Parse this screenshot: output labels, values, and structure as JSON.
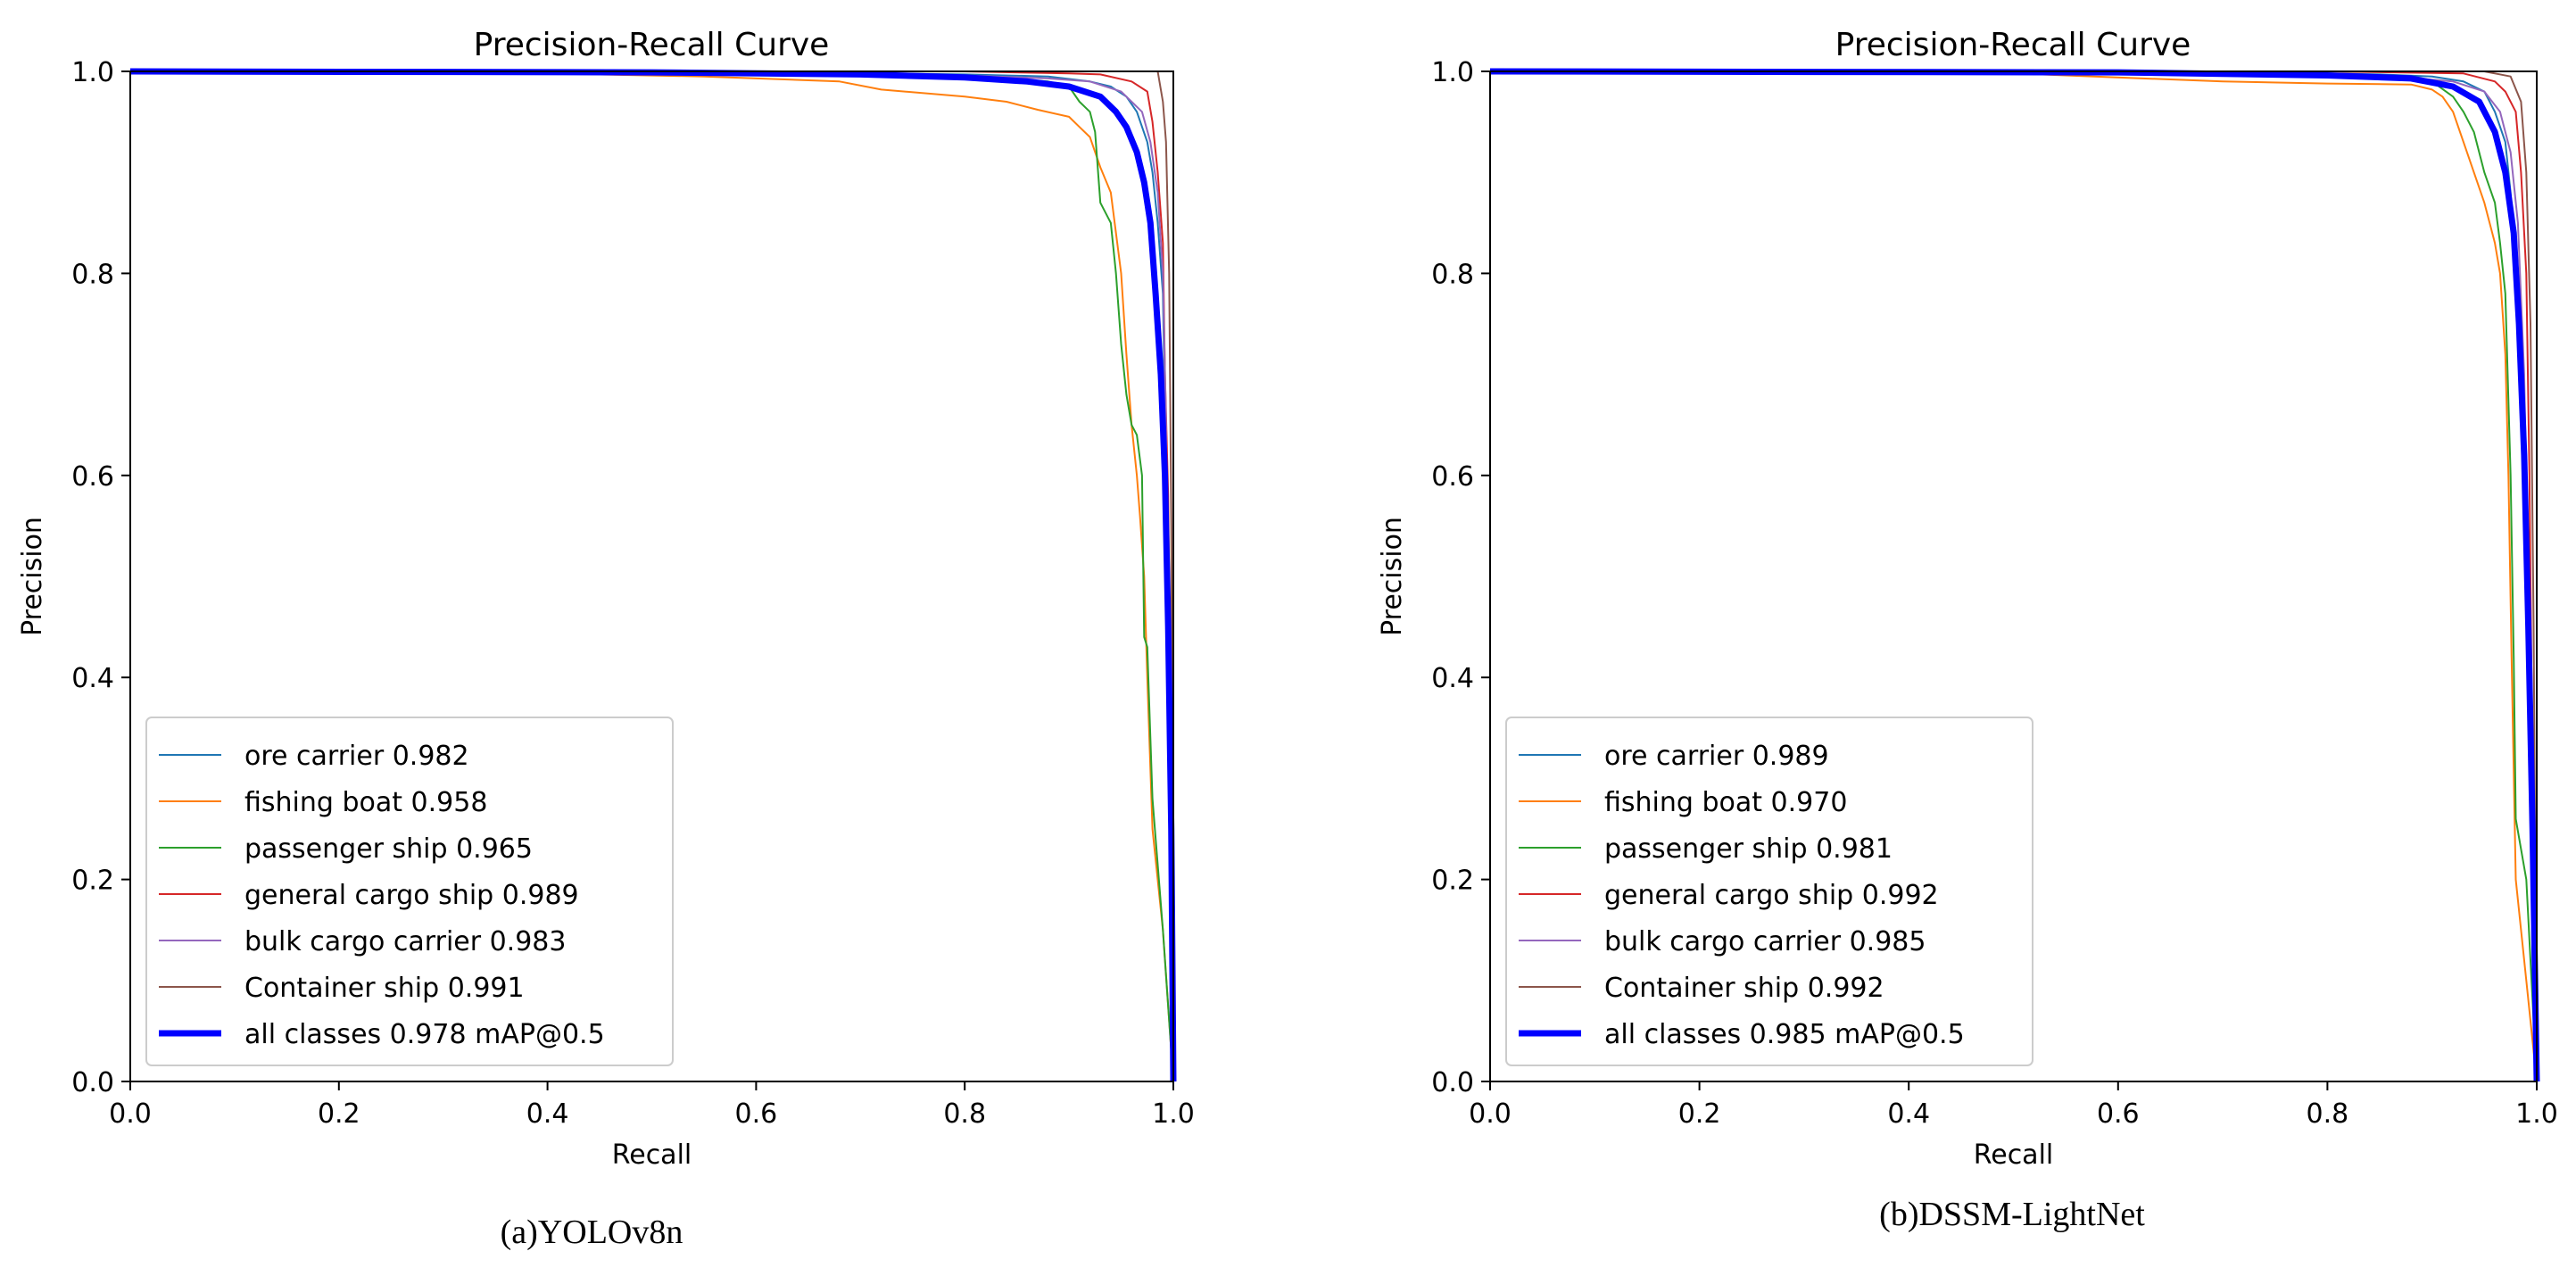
{
  "chart_data": [
    {
      "type": "line",
      "title": "Precision-Recall Curve",
      "xlabel": "Recall",
      "ylabel": "Precision",
      "xlim": [
        0,
        1
      ],
      "ylim": [
        0,
        1
      ],
      "xticks": [
        "0.0",
        "0.2",
        "0.4",
        "0.6",
        "0.8",
        "1.0"
      ],
      "yticks": [
        "0.0",
        "0.2",
        "0.4",
        "0.6",
        "0.8",
        "1.0"
      ],
      "caption": "(a)YOLOv8n",
      "legend_position": "lower-left",
      "series": [
        {
          "name": "ore carrier 0.982",
          "color": "#1f77b4",
          "width": 2,
          "points": [
            [
              0,
              1
            ],
            [
              0.55,
              1
            ],
            [
              0.8,
              0.997
            ],
            [
              0.88,
              0.995
            ],
            [
              0.92,
              0.99
            ],
            [
              0.94,
              0.985
            ],
            [
              0.955,
              0.975
            ],
            [
              0.965,
              0.96
            ],
            [
              0.975,
              0.93
            ],
            [
              0.98,
              0.9
            ],
            [
              0.985,
              0.85
            ],
            [
              0.99,
              0.78
            ],
            [
              0.993,
              0.6
            ],
            [
              0.996,
              0.3
            ],
            [
              1,
              0
            ]
          ]
        },
        {
          "name": "fishing boat 0.958",
          "color": "#ff7f0e",
          "width": 2,
          "points": [
            [
              0,
              1
            ],
            [
              0.3,
              1
            ],
            [
              0.55,
              0.995
            ],
            [
              0.68,
              0.99
            ],
            [
              0.72,
              0.982
            ],
            [
              0.8,
              0.975
            ],
            [
              0.84,
              0.97
            ],
            [
              0.87,
              0.962
            ],
            [
              0.9,
              0.955
            ],
            [
              0.91,
              0.945
            ],
            [
              0.92,
              0.935
            ],
            [
              0.93,
              0.905
            ],
            [
              0.94,
              0.88
            ],
            [
              0.95,
              0.8
            ],
            [
              0.955,
              0.72
            ],
            [
              0.96,
              0.65
            ],
            [
              0.965,
              0.6
            ],
            [
              0.968,
              0.56
            ],
            [
              0.972,
              0.5
            ],
            [
              0.975,
              0.4
            ],
            [
              0.98,
              0.25
            ],
            [
              0.99,
              0.15
            ],
            [
              1,
              0
            ]
          ]
        },
        {
          "name": "passenger ship 0.965",
          "color": "#2ca02c",
          "width": 2,
          "points": [
            [
              0,
              1
            ],
            [
              0.6,
              1
            ],
            [
              0.8,
              0.995
            ],
            [
              0.88,
              0.99
            ],
            [
              0.9,
              0.985
            ],
            [
              0.91,
              0.97
            ],
            [
              0.92,
              0.96
            ],
            [
              0.925,
              0.94
            ],
            [
              0.93,
              0.87
            ],
            [
              0.94,
              0.85
            ],
            [
              0.945,
              0.8
            ],
            [
              0.95,
              0.73
            ],
            [
              0.955,
              0.68
            ],
            [
              0.96,
              0.65
            ],
            [
              0.965,
              0.64
            ],
            [
              0.97,
              0.6
            ],
            [
              0.972,
              0.44
            ],
            [
              0.975,
              0.43
            ],
            [
              0.98,
              0.28
            ],
            [
              0.99,
              0.15
            ],
            [
              1,
              0
            ]
          ]
        },
        {
          "name": "general cargo ship 0.989",
          "color": "#d62728",
          "width": 2,
          "points": [
            [
              0,
              1
            ],
            [
              0.8,
              1
            ],
            [
              0.9,
              0.998
            ],
            [
              0.93,
              0.997
            ],
            [
              0.96,
              0.99
            ],
            [
              0.975,
              0.98
            ],
            [
              0.98,
              0.95
            ],
            [
              0.985,
              0.9
            ],
            [
              0.99,
              0.83
            ],
            [
              0.992,
              0.7
            ],
            [
              0.995,
              0.58
            ],
            [
              0.998,
              0.3
            ],
            [
              1,
              0
            ]
          ]
        },
        {
          "name": "bulk cargo carrier 0.983",
          "color": "#9467bd",
          "width": 2,
          "points": [
            [
              0,
              1
            ],
            [
              0.6,
              1
            ],
            [
              0.8,
              0.996
            ],
            [
              0.88,
              0.993
            ],
            [
              0.92,
              0.99
            ],
            [
              0.95,
              0.98
            ],
            [
              0.97,
              0.96
            ],
            [
              0.978,
              0.93
            ],
            [
              0.985,
              0.88
            ],
            [
              0.99,
              0.8
            ],
            [
              0.993,
              0.65
            ],
            [
              0.996,
              0.3
            ],
            [
              1,
              0
            ]
          ]
        },
        {
          "name": "Container ship 0.991",
          "color": "#8c564b",
          "width": 2,
          "points": [
            [
              0,
              1
            ],
            [
              0.85,
              1
            ],
            [
              0.96,
              1
            ],
            [
              0.985,
              1
            ],
            [
              0.99,
              0.97
            ],
            [
              0.993,
              0.93
            ],
            [
              0.996,
              0.8
            ],
            [
              0.998,
              0.55
            ],
            [
              1,
              0
            ]
          ]
        },
        {
          "name": "all classes 0.978 mAP@0.5",
          "color": "#0000ff",
          "width": 7,
          "points": [
            [
              0,
              1
            ],
            [
              0.5,
              0.999
            ],
            [
              0.7,
              0.997
            ],
            [
              0.8,
              0.994
            ],
            [
              0.86,
              0.99
            ],
            [
              0.9,
              0.985
            ],
            [
              0.93,
              0.975
            ],
            [
              0.945,
              0.96
            ],
            [
              0.955,
              0.945
            ],
            [
              0.965,
              0.92
            ],
            [
              0.972,
              0.89
            ],
            [
              0.978,
              0.85
            ],
            [
              0.983,
              0.78
            ],
            [
              0.988,
              0.7
            ],
            [
              0.992,
              0.6
            ],
            [
              0.995,
              0.45
            ],
            [
              0.998,
              0.25
            ],
            [
              1,
              0
            ]
          ]
        }
      ]
    },
    {
      "type": "line",
      "title": "Precision-Recall Curve",
      "xlabel": "Recall",
      "ylabel": "Precision",
      "xlim": [
        0,
        1
      ],
      "ylim": [
        0,
        1
      ],
      "xticks": [
        "0.0",
        "0.2",
        "0.4",
        "0.6",
        "0.8",
        "1.0"
      ],
      "yticks": [
        "0.0",
        "0.2",
        "0.4",
        "0.6",
        "0.8",
        "1.0"
      ],
      "caption": "(b)DSSM-LightNet",
      "legend_position": "lower-left",
      "series": [
        {
          "name": "ore carrier 0.989",
          "color": "#1f77b4",
          "width": 2,
          "points": [
            [
              0,
              1
            ],
            [
              0.7,
              1
            ],
            [
              0.85,
              0.997
            ],
            [
              0.9,
              0.995
            ],
            [
              0.93,
              0.99
            ],
            [
              0.95,
              0.98
            ],
            [
              0.96,
              0.96
            ],
            [
              0.97,
              0.93
            ],
            [
              0.975,
              0.88
            ],
            [
              0.98,
              0.8
            ],
            [
              0.985,
              0.7
            ],
            [
              0.99,
              0.5
            ],
            [
              0.995,
              0.2
            ],
            [
              1,
              0
            ]
          ]
        },
        {
          "name": "fishing boat 0.970",
          "color": "#ff7f0e",
          "width": 2,
          "points": [
            [
              0,
              1
            ],
            [
              0.5,
              0.998
            ],
            [
              0.7,
              0.99
            ],
            [
              0.8,
              0.988
            ],
            [
              0.88,
              0.987
            ],
            [
              0.9,
              0.982
            ],
            [
              0.91,
              0.975
            ],
            [
              0.92,
              0.96
            ],
            [
              0.93,
              0.93
            ],
            [
              0.94,
              0.9
            ],
            [
              0.95,
              0.87
            ],
            [
              0.96,
              0.83
            ],
            [
              0.965,
              0.8
            ],
            [
              0.97,
              0.72
            ],
            [
              0.973,
              0.6
            ],
            [
              0.976,
              0.42
            ],
            [
              0.98,
              0.2
            ],
            [
              0.99,
              0.1
            ],
            [
              1,
              0
            ]
          ]
        },
        {
          "name": "passenger ship 0.981",
          "color": "#2ca02c",
          "width": 2,
          "points": [
            [
              0,
              1
            ],
            [
              0.7,
              1
            ],
            [
              0.85,
              0.995
            ],
            [
              0.9,
              0.99
            ],
            [
              0.92,
              0.975
            ],
            [
              0.93,
              0.96
            ],
            [
              0.94,
              0.94
            ],
            [
              0.95,
              0.9
            ],
            [
              0.96,
              0.87
            ],
            [
              0.965,
              0.83
            ],
            [
              0.97,
              0.78
            ],
            [
              0.975,
              0.6
            ],
            [
              0.978,
              0.42
            ],
            [
              0.98,
              0.26
            ],
            [
              0.99,
              0.2
            ],
            [
              1,
              0
            ]
          ]
        },
        {
          "name": "general cargo ship 0.992",
          "color": "#d62728",
          "width": 2,
          "points": [
            [
              0,
              1
            ],
            [
              0.8,
              1
            ],
            [
              0.93,
              0.998
            ],
            [
              0.96,
              0.99
            ],
            [
              0.97,
              0.98
            ],
            [
              0.98,
              0.96
            ],
            [
              0.985,
              0.9
            ],
            [
              0.99,
              0.8
            ],
            [
              0.993,
              0.6
            ],
            [
              0.996,
              0.3
            ],
            [
              1,
              0
            ]
          ]
        },
        {
          "name": "bulk cargo carrier 0.985",
          "color": "#9467bd",
          "width": 2,
          "points": [
            [
              0,
              1
            ],
            [
              0.7,
              1
            ],
            [
              0.85,
              0.996
            ],
            [
              0.92,
              0.99
            ],
            [
              0.95,
              0.98
            ],
            [
              0.965,
              0.96
            ],
            [
              0.975,
              0.92
            ],
            [
              0.982,
              0.85
            ],
            [
              0.988,
              0.7
            ],
            [
              0.992,
              0.5
            ],
            [
              0.996,
              0.2
            ],
            [
              1,
              0
            ]
          ]
        },
        {
          "name": "Container ship 0.992",
          "color": "#8c564b",
          "width": 2,
          "points": [
            [
              0,
              1
            ],
            [
              0.85,
              1
            ],
            [
              0.95,
              1
            ],
            [
              0.975,
              0.995
            ],
            [
              0.985,
              0.97
            ],
            [
              0.99,
              0.9
            ],
            [
              0.994,
              0.75
            ],
            [
              0.997,
              0.45
            ],
            [
              1,
              0
            ]
          ]
        },
        {
          "name": "all classes 0.985 mAP@0.5",
          "color": "#0000ff",
          "width": 7,
          "points": [
            [
              0,
              1
            ],
            [
              0.6,
              0.999
            ],
            [
              0.8,
              0.996
            ],
            [
              0.88,
              0.993
            ],
            [
              0.92,
              0.985
            ],
            [
              0.945,
              0.97
            ],
            [
              0.96,
              0.94
            ],
            [
              0.97,
              0.9
            ],
            [
              0.978,
              0.84
            ],
            [
              0.983,
              0.75
            ],
            [
              0.988,
              0.62
            ],
            [
              0.992,
              0.45
            ],
            [
              0.996,
              0.25
            ],
            [
              1,
              0
            ]
          ]
        }
      ]
    }
  ]
}
